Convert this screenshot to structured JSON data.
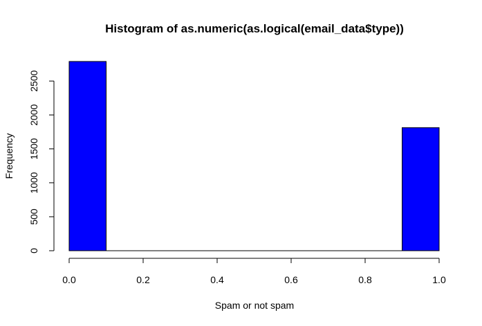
{
  "chart_data": {
    "type": "bar",
    "title": "Histogram of as.numeric(as.logical(email_data$type))",
    "xlabel": "Spam or not spam",
    "ylabel": "Frequency",
    "bin_edges": [
      0.0,
      0.1,
      0.2,
      0.3,
      0.4,
      0.5,
      0.6,
      0.7,
      0.8,
      0.9,
      1.0
    ],
    "values": [
      2788,
      0,
      0,
      0,
      0,
      0,
      0,
      0,
      0,
      1813
    ],
    "xlim": [
      0,
      1
    ],
    "ylim": [
      0,
      2788
    ],
    "x_ticks": [
      0.0,
      0.2,
      0.4,
      0.6,
      0.8,
      1.0
    ],
    "x_tick_labels": [
      "0.0",
      "0.2",
      "0.4",
      "0.6",
      "0.8",
      "1.0"
    ],
    "y_ticks": [
      0,
      500,
      1000,
      1500,
      2000,
      2500
    ],
    "y_tick_labels": [
      "0",
      "500",
      "1000",
      "1500",
      "2000",
      "2500"
    ],
    "bar_color": "#0000ff",
    "grid": false,
    "legend": "none"
  }
}
